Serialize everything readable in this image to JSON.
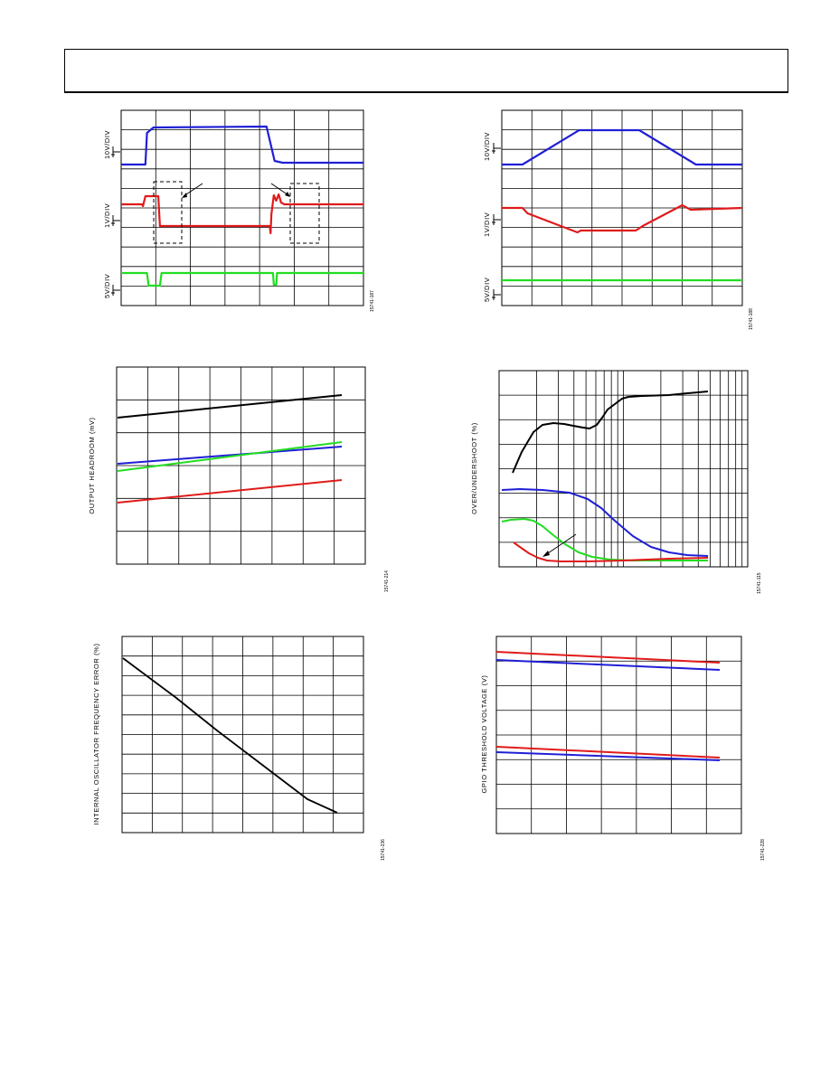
{
  "colors": {
    "blue": "#1f1fd6",
    "red": "#e01b1b",
    "green": "#22dd22",
    "black": "#000000"
  },
  "chart_data": [
    {
      "id": "scope-1",
      "type": "line",
      "channel_labels": [
        "10V/DIV",
        "1V/DIV",
        "5V/DIV"
      ],
      "figure_id": "15741-187",
      "series": [
        {
          "color": "blue",
          "points": [
            [
              0,
              182
            ],
            [
              1.5,
              182
            ],
            [
              1.6,
              147
            ],
            [
              2,
              141
            ],
            [
              9,
              140
            ],
            [
              9.5,
              178
            ],
            [
              10,
              180
            ],
            [
              15,
              180
            ]
          ]
        },
        {
          "color": "red",
          "points": [
            [
              0,
              226
            ],
            [
              1.3,
              226
            ],
            [
              1.35,
              228
            ],
            [
              1.5,
              217
            ],
            [
              2.3,
              217
            ],
            [
              2.4,
              250
            ],
            [
              9.2,
              250
            ],
            [
              9.25,
              258
            ],
            [
              9.3,
              237
            ],
            [
              9.45,
              216
            ],
            [
              9.6,
              222
            ],
            [
              9.75,
              215
            ],
            [
              9.9,
              224
            ],
            [
              10.1,
              226
            ],
            [
              15,
              226
            ]
          ]
        },
        {
          "color": "green",
          "points": [
            [
              0,
              302
            ],
            [
              1.6,
              302
            ],
            [
              1.7,
              316
            ],
            [
              2.4,
              316
            ],
            [
              2.5,
              302
            ],
            [
              9.4,
              302
            ],
            [
              9.45,
              315
            ],
            [
              9.6,
              315
            ],
            [
              9.65,
              302
            ],
            [
              15,
              302
            ]
          ]
        }
      ]
    },
    {
      "id": "scope-2",
      "type": "line",
      "channel_labels": [
        "10V/DIV",
        "1V/DIV",
        "5V/DIV"
      ],
      "figure_id": "15741-188",
      "series": [
        {
          "color": "blue",
          "points": [
            [
              0,
              182
            ],
            [
              1.2,
              182
            ],
            [
              4.5,
              144
            ],
            [
              8,
              144
            ],
            [
              11.3,
              182
            ],
            [
              14,
              182
            ]
          ]
        },
        {
          "color": "red",
          "points": [
            [
              0,
              230
            ],
            [
              1.2,
              230
            ],
            [
              1.5,
              236
            ],
            [
              4.4,
              257
            ],
            [
              4.6,
              255
            ],
            [
              7.8,
              255
            ],
            [
              8.2,
              250
            ],
            [
              10.5,
              227
            ],
            [
              11,
              232
            ],
            [
              14,
              230
            ]
          ]
        },
        {
          "color": "green",
          "points": [
            [
              0,
              310
            ],
            [
              14,
              310
            ]
          ]
        }
      ]
    },
    {
      "id": "headroom",
      "type": "line",
      "ylabel": "OUTPUT HEADROOM (mV)",
      "figure_id": "15741-214",
      "series": [
        {
          "color": "black",
          "points": [
            [
              0,
              462
            ],
            [
              1,
              437
            ]
          ]
        },
        {
          "color": "blue",
          "points": [
            [
              0,
              513
            ],
            [
              1,
              494
            ]
          ]
        },
        {
          "color": "green",
          "points": [
            [
              0,
              521
            ],
            [
              1,
              489
            ]
          ]
        },
        {
          "color": "red",
          "points": [
            [
              0,
              556
            ],
            [
              1,
              531
            ]
          ]
        }
      ]
    },
    {
      "id": "overshoot",
      "type": "line",
      "ylabel": "OVER/UNDERSHOOT (%)",
      "figure_id": "15741-115",
      "series": [
        {
          "color": "black",
          "points": [
            [
              567,
              523
            ],
            [
              577,
              500
            ],
            [
              590,
              478
            ],
            [
              600,
              470
            ],
            [
              612,
              468
            ],
            [
              624,
              469
            ],
            [
              634,
              471
            ],
            [
              645,
              473
            ],
            [
              652,
              474
            ],
            [
              660,
              470
            ],
            [
              666,
              462
            ],
            [
              672,
              453
            ],
            [
              680,
              447
            ],
            [
              688,
              441
            ],
            [
              695,
              439
            ],
            [
              710,
              438
            ],
            [
              740,
              437
            ],
            [
              760,
              435
            ],
            [
              783,
              433
            ]
          ]
        },
        {
          "color": "blue",
          "points": [
            [
              555,
              542
            ],
            [
              575,
              541
            ],
            [
              600,
              542
            ],
            [
              630,
              545
            ],
            [
              650,
              552
            ],
            [
              665,
              562
            ],
            [
              680,
              576
            ],
            [
              700,
              593
            ],
            [
              720,
              605
            ],
            [
              740,
              611
            ],
            [
              760,
              614
            ],
            [
              783,
              615
            ]
          ]
        },
        {
          "color": "green",
          "points": [
            [
              555,
              577
            ],
            [
              565,
              575
            ],
            [
              580,
              574
            ],
            [
              590,
              576
            ],
            [
              600,
              582
            ],
            [
              612,
              592
            ],
            [
              625,
              602
            ],
            [
              640,
              611
            ],
            [
              655,
              616
            ],
            [
              675,
              619
            ],
            [
              700,
              620
            ],
            [
              740,
              620
            ],
            [
              783,
              620
            ]
          ]
        },
        {
          "color": "red",
          "points": [
            [
              568,
              600
            ],
            [
              575,
              605
            ],
            [
              585,
              612
            ],
            [
              595,
              617
            ],
            [
              605,
              620
            ],
            [
              620,
              621
            ],
            [
              650,
              621
            ],
            [
              690,
              620
            ],
            [
              740,
              618
            ],
            [
              783,
              617
            ]
          ]
        }
      ]
    },
    {
      "id": "oscillator",
      "type": "line",
      "ylabel": "INTERNAL OSCILLATOR FREQUENCY ERROR (%)",
      "figure_id": "15741-236",
      "series": [
        {
          "color": "black",
          "points": [
            [
              136,
              728
            ],
            [
              195,
              772
            ],
            [
              240,
              808
            ],
            [
              290,
              846
            ],
            [
              340,
              884
            ],
            [
              373,
              899
            ]
          ]
        }
      ]
    },
    {
      "id": "gpio",
      "type": "line",
      "ylabel": "GPIO THRESHOLD VOLTAGE (V)",
      "figure_id": "15741-228",
      "series": [
        {
          "color": "red",
          "points": [
            [
              549,
              721
            ],
            [
              796,
              733
            ]
          ]
        },
        {
          "color": "blue",
          "points": [
            [
              549,
              730
            ],
            [
              796,
              741
            ]
          ]
        },
        {
          "color": "red",
          "points": [
            [
              549,
              826
            ],
            [
              796,
              838
            ]
          ]
        },
        {
          "color": "blue",
          "points": [
            [
              549,
              832
            ],
            [
              796,
              841
            ]
          ]
        }
      ]
    }
  ]
}
